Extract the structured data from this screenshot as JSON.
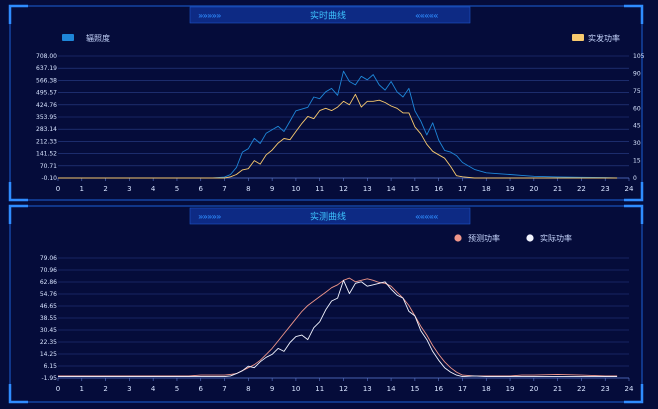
{
  "panels": [
    {
      "title": "实时曲线",
      "chev_left": "»»»»»",
      "chev_right": "«««««"
    },
    {
      "title": "实测曲线",
      "chev_left": "»»»»»",
      "chev_right": "«««««"
    }
  ],
  "colors": {
    "background": "#050c3a",
    "frame": "#1c5fd6",
    "grid": "#2a3f8a",
    "irradiance": "#1e86d8",
    "power_top": "#f7c96e",
    "forecast": "#f0968a",
    "actual": "#f2f4ff"
  },
  "chart_data": [
    {
      "type": "line",
      "legend": [
        {
          "label": "辐照度",
          "position": "top-left"
        },
        {
          "label": "实发功率",
          "position": "top-right"
        }
      ],
      "x": [
        0,
        0.5,
        1,
        1.5,
        2,
        2.5,
        3,
        3.5,
        4,
        4.5,
        5,
        5.5,
        6,
        6.5,
        7,
        7.25,
        7.5,
        7.75,
        8,
        8.25,
        8.5,
        8.75,
        9,
        9.25,
        9.5,
        9.75,
        10,
        10.25,
        10.5,
        10.75,
        11,
        11.25,
        11.5,
        11.75,
        12,
        12.25,
        12.5,
        12.75,
        13,
        13.25,
        13.5,
        13.75,
        14,
        14.25,
        14.5,
        14.75,
        15,
        15.25,
        15.5,
        15.75,
        16,
        16.25,
        16.5,
        16.75,
        17,
        17.5,
        18,
        18.5,
        19,
        19.5,
        20,
        21,
        22,
        23,
        23.5
      ],
      "xlim": [
        0,
        24
      ],
      "xticks": [
        "0",
        "1",
        "2",
        "3",
        "4",
        "5",
        "6",
        "7",
        "8",
        "9",
        "10",
        "11",
        "12",
        "13",
        "14",
        "15",
        "16",
        "17",
        "18",
        "19",
        "20",
        "21",
        "22",
        "23",
        "24"
      ],
      "y_left_ticks": [
        "-0.10",
        "70.71",
        "141.52",
        "212.33",
        "283.14",
        "353.95",
        "424.76",
        "495.57",
        "566.38",
        "637.19",
        "708.00"
      ],
      "y_left_lim": [
        -0.1,
        708.0
      ],
      "y_right_ticks": [
        "0",
        "15",
        "30",
        "45",
        "60",
        "75",
        "90",
        "105"
      ],
      "y_right_lim": [
        0,
        105
      ],
      "series": [
        {
          "name": "辐照度",
          "axis": "left",
          "color": "#1e86d8",
          "values": [
            0,
            0,
            0,
            0,
            0,
            0,
            0,
            0,
            0,
            0,
            0,
            0,
            0,
            0,
            5,
            20,
            60,
            150,
            170,
            230,
            200,
            260,
            280,
            300,
            270,
            330,
            390,
            400,
            410,
            470,
            460,
            500,
            520,
            480,
            620,
            560,
            540,
            590,
            570,
            600,
            540,
            510,
            560,
            500,
            470,
            520,
            390,
            330,
            250,
            320,
            220,
            160,
            150,
            130,
            90,
            50,
            30,
            25,
            20,
            15,
            10,
            6,
            4,
            2,
            0
          ]
        },
        {
          "name": "实发功率",
          "axis": "right",
          "color": "#f7c96e",
          "values": [
            0,
            0,
            0,
            0,
            0,
            0,
            0,
            0,
            0,
            0,
            0,
            0,
            0,
            0,
            0,
            1,
            3,
            7,
            8,
            15,
            12,
            20,
            24,
            30,
            34,
            33,
            40,
            47,
            53,
            51,
            58,
            60,
            58,
            61,
            66,
            63,
            72,
            61,
            66,
            66,
            67,
            65,
            62,
            60,
            56,
            56,
            44,
            38,
            29,
            23,
            20,
            17,
            10,
            2,
            1,
            0,
            0,
            0,
            0,
            0,
            0,
            0,
            0,
            0,
            0
          ]
        }
      ]
    },
    {
      "type": "line",
      "legend": [
        {
          "label": "预测功率",
          "position": "top-right"
        },
        {
          "label": "实际功率",
          "position": "top-right"
        }
      ],
      "x": [
        0,
        0.5,
        1,
        1.5,
        2,
        2.5,
        3,
        3.5,
        4,
        4.5,
        5,
        5.5,
        6,
        6.5,
        7,
        7.25,
        7.5,
        7.75,
        8,
        8.25,
        8.5,
        8.75,
        9,
        9.25,
        9.5,
        9.75,
        10,
        10.25,
        10.5,
        10.75,
        11,
        11.25,
        11.5,
        11.75,
        12,
        12.25,
        12.5,
        12.75,
        13,
        13.25,
        13.5,
        13.75,
        14,
        14.25,
        14.5,
        14.75,
        15,
        15.25,
        15.5,
        15.75,
        16,
        16.25,
        16.5,
        16.75,
        17,
        17.5,
        18,
        18.5,
        19,
        19.5,
        20,
        21,
        22,
        23,
        23.5
      ],
      "xlim": [
        0,
        24
      ],
      "xticks": [
        "0",
        "1",
        "2",
        "3",
        "4",
        "5",
        "6",
        "7",
        "8",
        "9",
        "10",
        "11",
        "12",
        "13",
        "14",
        "15",
        "16",
        "17",
        "18",
        "19",
        "20",
        "21",
        "22",
        "23",
        "24"
      ],
      "y_left_ticks": [
        "-1.95",
        "6.15",
        "14.25",
        "22.35",
        "30.45",
        "38.55",
        "46.65",
        "54.76",
        "62.86",
        "70.96",
        "79.06"
      ],
      "y_left_lim": [
        -1.95,
        79.06
      ],
      "series": [
        {
          "name": "预测功率",
          "axis": "left",
          "color": "#f0968a",
          "values": [
            -0.5,
            -0.5,
            -0.5,
            -0.5,
            -0.5,
            -0.5,
            -0.5,
            -0.5,
            -0.5,
            -0.5,
            -0.5,
            -0.5,
            0,
            0,
            0,
            0.5,
            1,
            3,
            5,
            7,
            10,
            14,
            18,
            23,
            28,
            33,
            38,
            43,
            47,
            50,
            53,
            56,
            59,
            61,
            64,
            65.5,
            63,
            64,
            65,
            64,
            62.5,
            62,
            60,
            56,
            52,
            47,
            40,
            33,
            27,
            20,
            14,
            9,
            5,
            2,
            0,
            -0.5,
            -0.5,
            -0.5,
            -0.5,
            0,
            0,
            0.5,
            0,
            -0.5,
            -0.5
          ]
        },
        {
          "name": "实际功率",
          "axis": "left",
          "color": "#f2f4ff",
          "values": [
            -1,
            -1,
            -1,
            -1,
            -1,
            -1,
            -1,
            -1,
            -1,
            -1,
            -1,
            -1,
            -1,
            -1,
            -1,
            -0.5,
            1,
            3,
            6,
            5,
            9,
            12,
            14,
            18,
            16,
            22,
            26,
            27,
            24,
            32,
            36,
            44,
            50,
            52,
            64,
            55,
            62,
            63,
            60,
            61,
            62,
            63,
            58,
            54,
            52,
            43,
            40,
            30,
            24,
            16,
            10,
            5,
            2,
            0,
            -1,
            -0.5,
            -1,
            -1,
            -1,
            -1,
            -1,
            -1,
            -1,
            -1,
            -1
          ]
        }
      ]
    }
  ]
}
